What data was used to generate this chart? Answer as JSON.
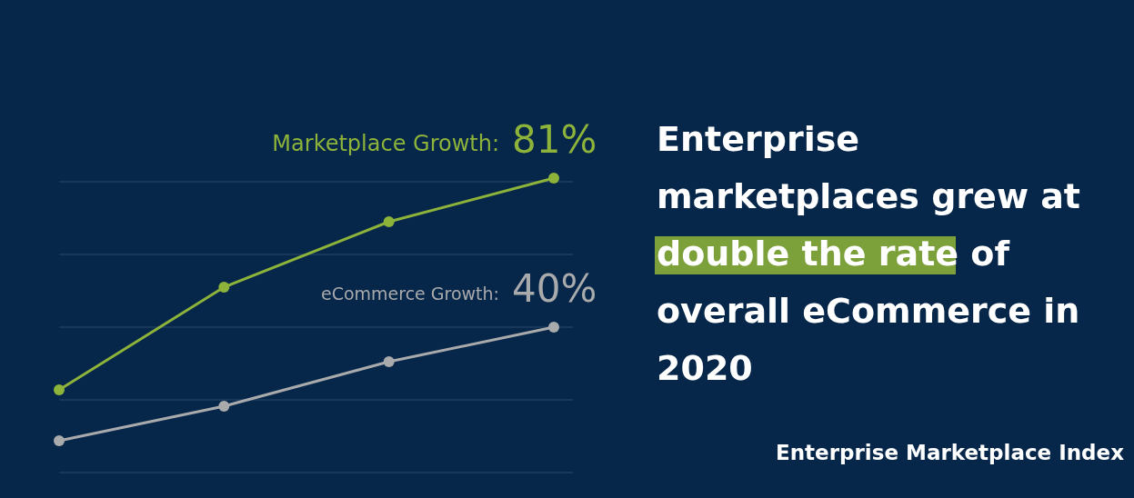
{
  "chart_data": {
    "type": "line",
    "title": "Enterprise marketplaces grew at double the rate of overall eCommerce in 2020",
    "categories": [
      null,
      null,
      null,
      null
    ],
    "ref_lines": [
      {
        "axis": "y",
        "value": 0,
        "color": "#2b4868"
      },
      {
        "axis": "y",
        "value": 20,
        "color": "#2b4868"
      },
      {
        "axis": "y",
        "value": 40,
        "color": "#2b4868"
      },
      {
        "axis": "y",
        "value": 60,
        "color": "#2b4868"
      },
      {
        "axis": "y",
        "value": 80,
        "color": "#2b4868"
      }
    ],
    "marker": "circle",
    "series": [
      {
        "name": "Marketplace Growth:",
        "color": "#8db33a",
        "values": [
          22.75,
          51,
          69,
          81
        ],
        "value_labels": [
          null,
          null,
          null,
          "81%"
        ]
      },
      {
        "name": "eCommerce Growth:",
        "color": "#a9aaac",
        "values": [
          8.75,
          18.25,
          30.5,
          40
        ],
        "value_labels": [
          null,
          null,
          null,
          "40%"
        ]
      }
    ],
    "annotations": [
      "Enterprise Marketplace Index"
    ]
  }
}
